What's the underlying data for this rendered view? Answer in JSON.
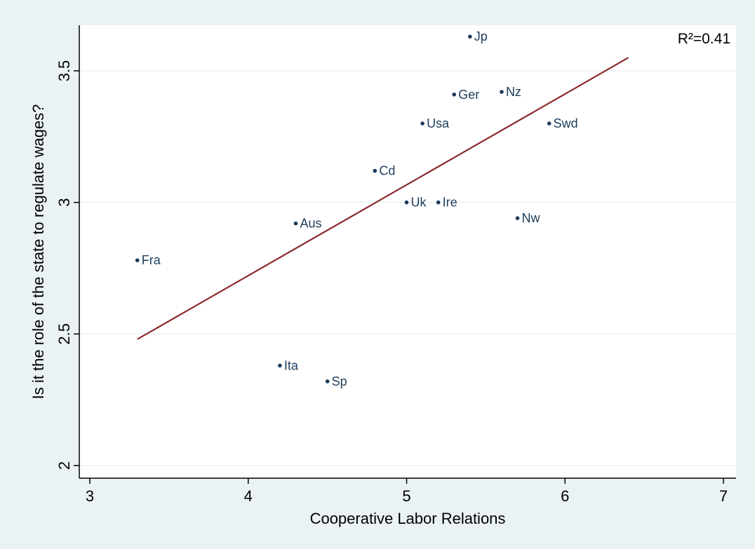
{
  "chart_data": {
    "type": "scatter",
    "title": "",
    "xlabel": "Cooperative Labor Relations",
    "ylabel": "Is it the role of the state to regulate wages?",
    "xlim": [
      3,
      7
    ],
    "ylim": [
      2,
      3.65
    ],
    "xticks": [
      3,
      4,
      5,
      6,
      7
    ],
    "yticks": [
      2,
      2.5,
      3,
      3.5
    ],
    "x_tick_labels": [
      "3",
      "4",
      "5",
      "6",
      "7"
    ],
    "y_tick_labels": [
      "2",
      "2.5",
      "3",
      "3.5"
    ],
    "grid": "horizontal",
    "annotation": "R²=0.41",
    "points": [
      {
        "label": "Jp",
        "x": 5.4,
        "y": 3.63
      },
      {
        "label": "Ger",
        "x": 5.3,
        "y": 3.41
      },
      {
        "label": "Nz",
        "x": 5.6,
        "y": 3.42
      },
      {
        "label": "Usa",
        "x": 5.1,
        "y": 3.3
      },
      {
        "label": "Swd",
        "x": 5.9,
        "y": 3.3
      },
      {
        "label": "Cd",
        "x": 4.8,
        "y": 3.12
      },
      {
        "label": "Uk",
        "x": 5.0,
        "y": 3.0
      },
      {
        "label": "Ire",
        "x": 5.2,
        "y": 3.0
      },
      {
        "label": "Nw",
        "x": 5.7,
        "y": 2.94
      },
      {
        "label": "Aus",
        "x": 4.3,
        "y": 2.92
      },
      {
        "label": "Fra",
        "x": 3.3,
        "y": 2.78
      },
      {
        "label": "Ita",
        "x": 4.2,
        "y": 2.38
      },
      {
        "label": "Sp",
        "x": 4.5,
        "y": 2.32
      }
    ],
    "fit_line": {
      "x": [
        3.3,
        6.4
      ],
      "y": [
        2.48,
        3.55
      ]
    },
    "colors": {
      "background": "#eaf2f3",
      "plot_background": "#ffffff",
      "point": "#1a3a5a",
      "fit_line": "#8b2a2e",
      "grid": "#eaf2f3"
    }
  }
}
